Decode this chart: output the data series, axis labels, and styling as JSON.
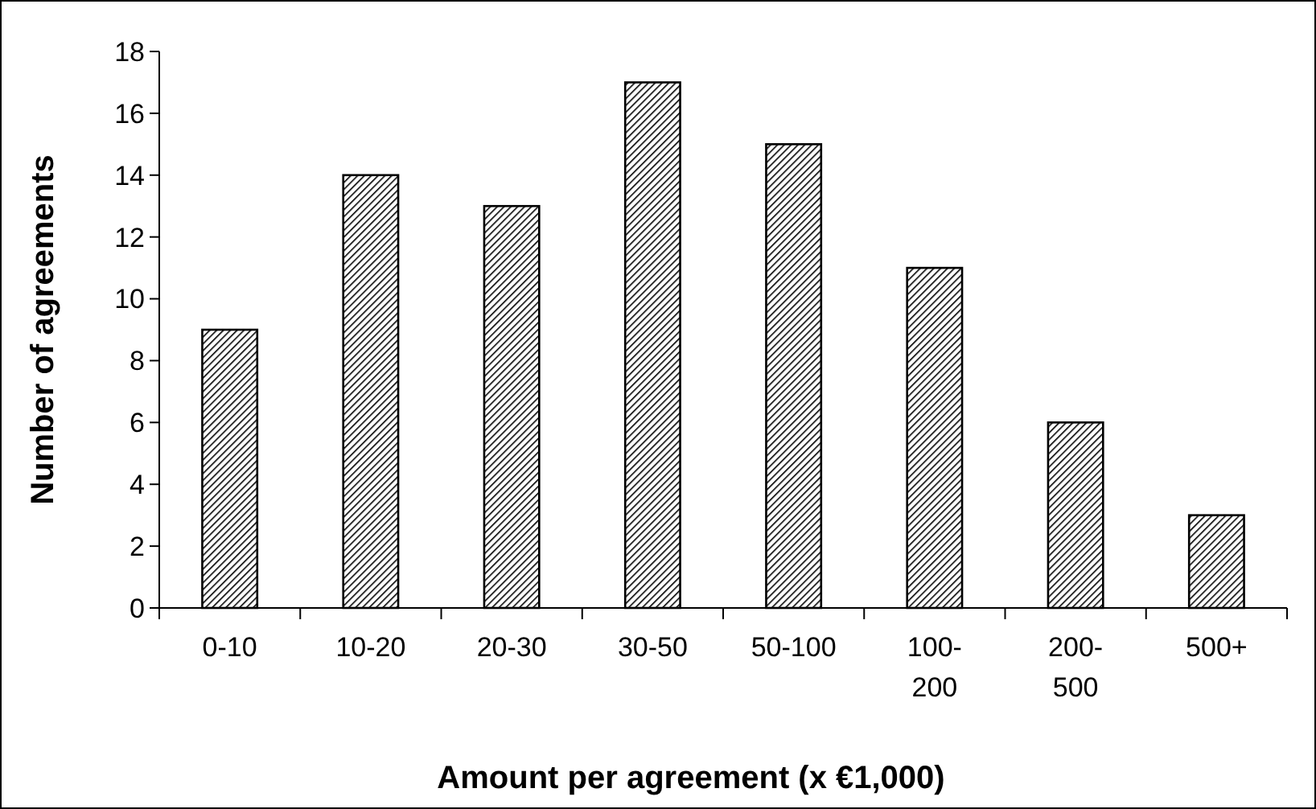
{
  "chart_data": {
    "type": "bar",
    "xlabel": "Amount per agreement (x €1,000)",
    "ylabel": "Number of agreements",
    "categories": [
      "0-10",
      "10-20",
      "20-30",
      "30-50",
      "50-100",
      "100-200",
      "200-500",
      "500+"
    ],
    "values": [
      9,
      14,
      13,
      17,
      15,
      11,
      6,
      3
    ],
    "color": "#000000",
    "ylim": [
      0,
      18
    ],
    "yticks": [
      0,
      2,
      4,
      6,
      8,
      10,
      12,
      14,
      16,
      18
    ],
    "grid": false
  }
}
